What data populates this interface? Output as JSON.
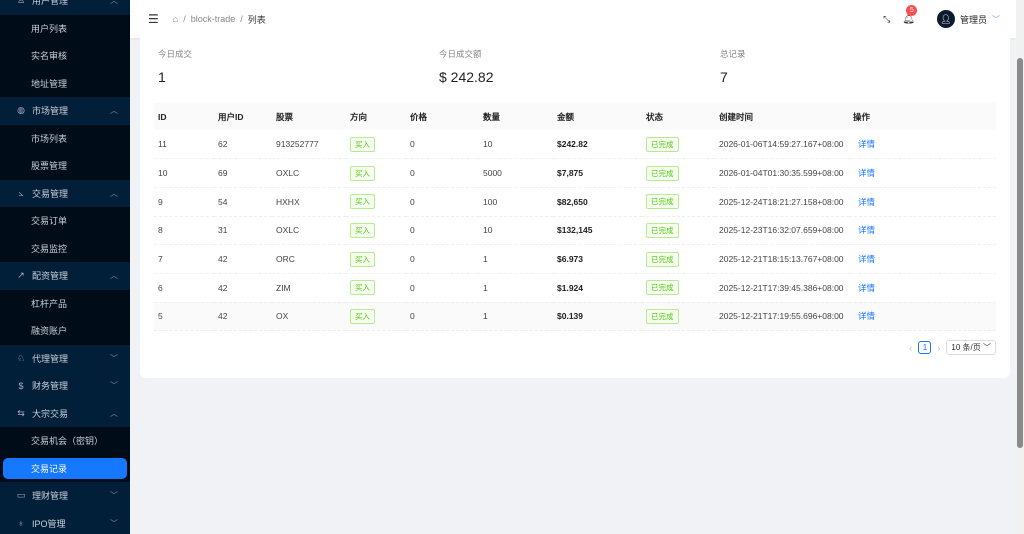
{
  "sidebar": {
    "items": [
      {
        "type": "group",
        "label": "用户管理",
        "icon": "user-icon",
        "expanded": true
      },
      {
        "type": "sub",
        "label": "用户列表"
      },
      {
        "type": "sub",
        "label": "实名审核"
      },
      {
        "type": "sub",
        "label": "地址管理"
      },
      {
        "type": "group",
        "label": "市场管理",
        "icon": "globe-icon",
        "expanded": true
      },
      {
        "type": "sub",
        "label": "市场列表"
      },
      {
        "type": "sub",
        "label": "股票管理"
      },
      {
        "type": "group",
        "label": "交易管理",
        "icon": "chart-line-icon",
        "expanded": true
      },
      {
        "type": "sub",
        "label": "交易订单"
      },
      {
        "type": "sub",
        "label": "交易监控"
      },
      {
        "type": "group",
        "label": "配资管理",
        "icon": "trend-icon",
        "expanded": true
      },
      {
        "type": "sub",
        "label": "杠杆产品"
      },
      {
        "type": "sub",
        "label": "融资账户"
      },
      {
        "type": "group",
        "label": "代理管理",
        "icon": "agent-icon",
        "expanded": false
      },
      {
        "type": "group",
        "label": "财务管理",
        "icon": "dollar-icon",
        "expanded": false
      },
      {
        "type": "group",
        "label": "大宗交易",
        "icon": "swap-icon",
        "expanded": true
      },
      {
        "type": "sub",
        "label": "交易机会（密钥）"
      },
      {
        "type": "sub",
        "label": "交易记录",
        "active": true
      },
      {
        "type": "group",
        "label": "理财管理",
        "icon": "finance-icon",
        "expanded": false
      },
      {
        "type": "group",
        "label": "IPO管理",
        "icon": "rocket-icon",
        "expanded": false
      }
    ]
  },
  "header": {
    "breadcrumb": [
      "block-trade",
      "列表"
    ],
    "notification_count": "5",
    "user": "管理员"
  },
  "stats": [
    {
      "label": "今日成交",
      "value": "1"
    },
    {
      "label": "今日成交额",
      "value": "$ 242.82"
    },
    {
      "label": "总记录",
      "value": "7"
    }
  ],
  "table": {
    "columns": [
      "ID",
      "用户ID",
      "股票",
      "方向",
      "价格",
      "数量",
      "金额",
      "状态",
      "创建时间",
      "操作"
    ],
    "rows": [
      [
        "11",
        "62",
        "913252777",
        "买入",
        "0",
        "10",
        "$242.82",
        "已完成",
        "2026-01-06T14:59:27.167+08:00",
        "详情"
      ],
      [
        "10",
        "69",
        "OXLC",
        "买入",
        "0",
        "5000",
        "$7,875",
        "已完成",
        "2026-01-04T01:30:35.599+08:00",
        "详情"
      ],
      [
        "9",
        "54",
        "HXHX",
        "买入",
        "0",
        "100",
        "$82,650",
        "已完成",
        "2025-12-24T18:21:27.158+08:00",
        "详情"
      ],
      [
        "8",
        "31",
        "OXLC",
        "买入",
        "0",
        "10",
        "$132,145",
        "已完成",
        "2025-12-23T16:32:07.659+08:00",
        "详情"
      ],
      [
        "7",
        "42",
        "ORC",
        "买入",
        "0",
        "1",
        "$6.973",
        "已完成",
        "2025-12-21T18:15:13.767+08:00",
        "详情"
      ],
      [
        "6",
        "42",
        "ZIM",
        "买入",
        "0",
        "1",
        "$1.924",
        "已完成",
        "2025-12-21T17:39:45.386+08:00",
        "详情"
      ],
      [
        "5",
        "42",
        "OX",
        "买入",
        "0",
        "1",
        "$0.139",
        "已完成",
        "2025-12-21T17:19:55.696+08:00",
        "详情"
      ]
    ]
  },
  "pagination": {
    "current": "1",
    "page_size": "10 条/页"
  },
  "colors": {
    "sidebar": "#001529",
    "active": "#1677ff",
    "success": "#52c41a"
  }
}
